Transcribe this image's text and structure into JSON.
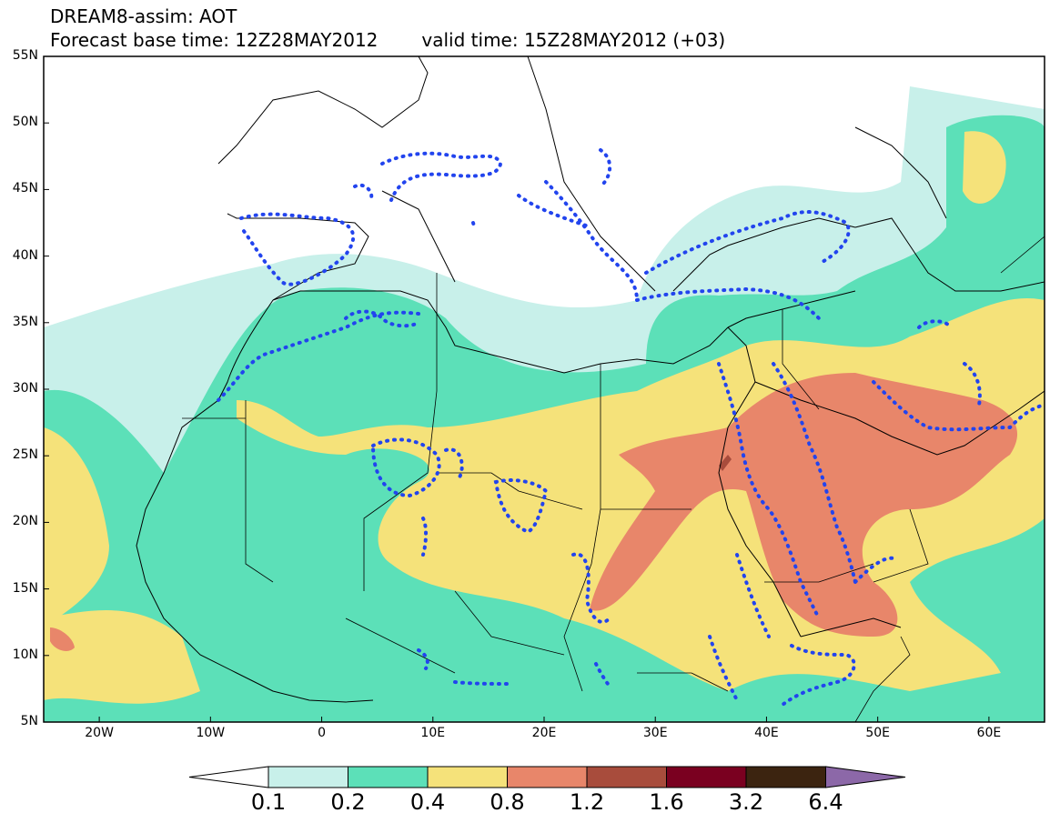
{
  "title": {
    "line1": "DREAM8-assim: AOT",
    "base_time": "Forecast base time: 12Z28MAY2012",
    "valid_time": "valid time: 15Z28MAY2012 (+03)"
  },
  "axes": {
    "lat_labels": [
      "55N",
      "50N",
      "45N",
      "40N",
      "35N",
      "30N",
      "25N",
      "20N",
      "15N",
      "10N",
      "5N"
    ],
    "lon_labels": [
      "20W",
      "10W",
      "0",
      "10E",
      "20E",
      "30E",
      "40E",
      "50E",
      "60E"
    ]
  },
  "colorbar": {
    "labels": [
      "0.1",
      "0.2",
      "0.4",
      "0.8",
      "1.2",
      "1.6",
      "3.2",
      "6.4"
    ],
    "colors": [
      "#ffffff",
      "#c8f0ea",
      "#5ce0b8",
      "#f5e27a",
      "#e8866a",
      "#a84c3c",
      "#7a0020",
      "#3c2410",
      "#8c68a8"
    ]
  },
  "colors": {
    "coast": "#000000",
    "dots": "#2244ee"
  }
}
